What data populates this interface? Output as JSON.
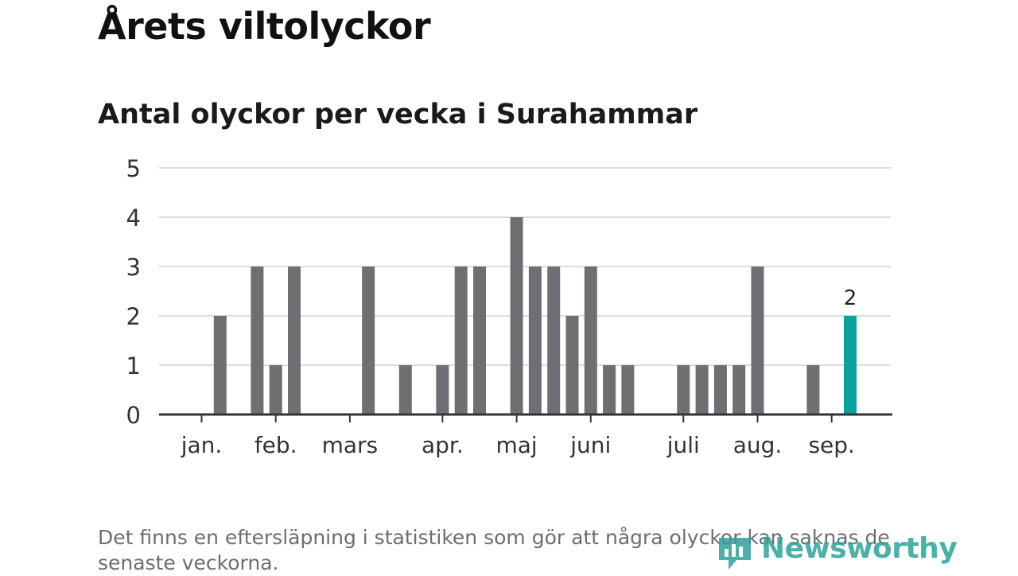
{
  "title": "Årets viltolyckor",
  "subtitle": "Antal olyckor per vecka i Surahammar",
  "footnote": "Det finns en eftersläpning i statistiken som gör att några olyckor kan saknas de senaste veckorna.",
  "logo_text": "Newsworthy",
  "colors": {
    "bar": "#6f6e73",
    "highlight": "#0aa29b",
    "grid": "#dddddd",
    "axis": "#333333"
  },
  "chart_data": {
    "type": "bar",
    "title": "Antal olyckor per vecka i Surahammar",
    "ylim": [
      0,
      5
    ],
    "y_ticks": [
      0,
      1,
      2,
      3,
      4,
      5
    ],
    "grid": true,
    "x_tick_labels": [
      "jan.",
      "feb.",
      "mars",
      "apr.",
      "maj",
      "juni",
      "juli",
      "aug.",
      "sep."
    ],
    "x_tick_weeks": [
      1,
      5,
      9,
      14,
      18,
      22,
      27,
      31,
      35
    ],
    "weeks": [
      1,
      2,
      3,
      4,
      5,
      6,
      7,
      8,
      9,
      10,
      11,
      12,
      13,
      14,
      15,
      16,
      17,
      18,
      19,
      20,
      21,
      22,
      23,
      24,
      25,
      26,
      27,
      28,
      29,
      30,
      31,
      32,
      33,
      34,
      35,
      36
    ],
    "values": [
      0,
      2,
      0,
      3,
      1,
      3,
      0,
      0,
      0,
      3,
      0,
      1,
      0,
      1,
      3,
      3,
      0,
      4,
      3,
      3,
      2,
      3,
      1,
      1,
      0,
      0,
      1,
      1,
      1,
      1,
      3,
      0,
      0,
      1,
      0,
      2
    ],
    "highlight_index": 35,
    "data_labels": [
      {
        "index": 35,
        "text": "2"
      }
    ]
  }
}
